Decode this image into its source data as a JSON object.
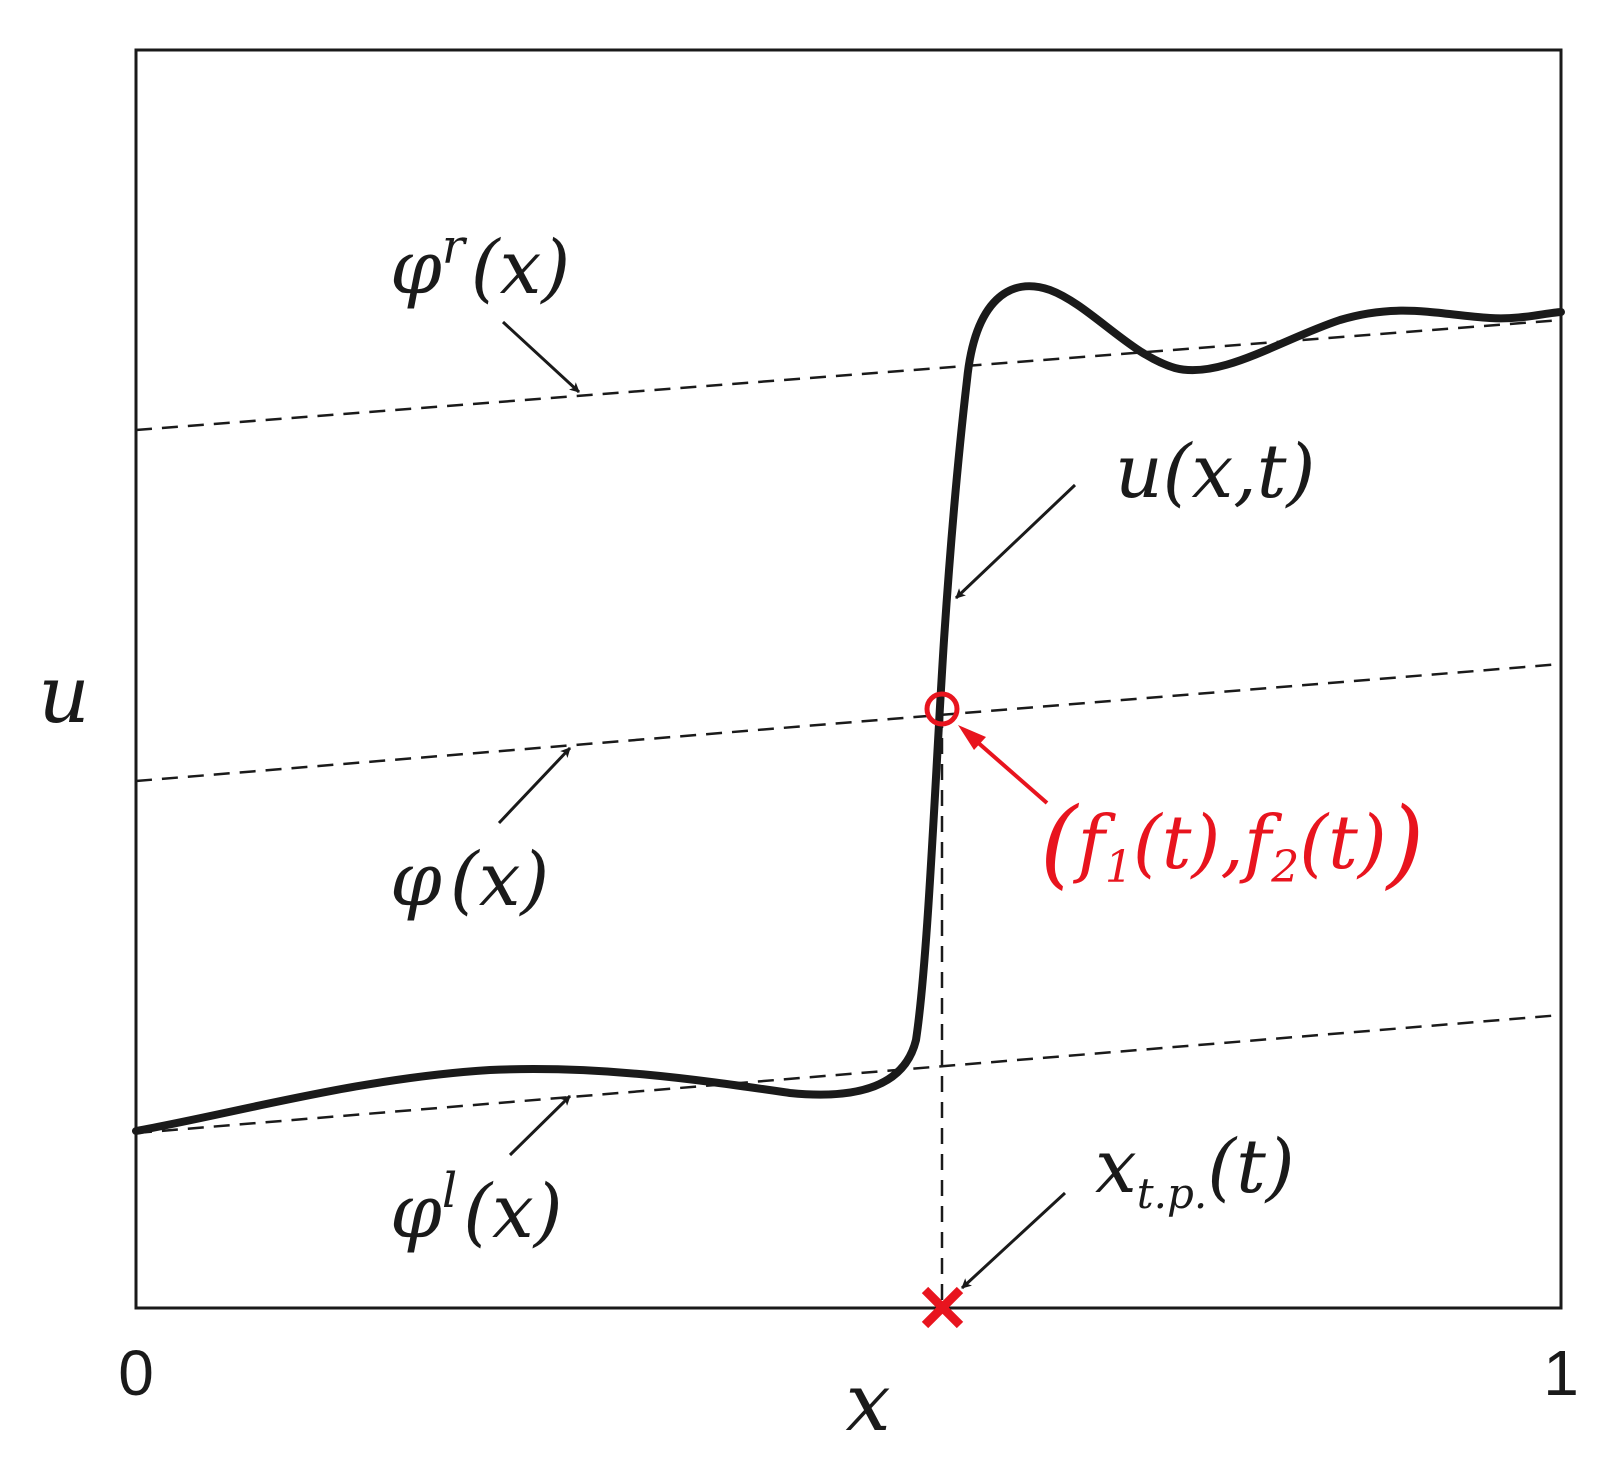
{
  "axes": {
    "xlabel": "x",
    "ylabel": "u",
    "x_ticks": [
      "0",
      "1"
    ]
  },
  "labels": {
    "phi_r": {
      "base": "φ",
      "sup": "r",
      "arg": "(x)"
    },
    "phi": {
      "base": "φ",
      "arg": "(x)"
    },
    "phi_l": {
      "base": "φ",
      "sup": "l",
      "arg": "(x)"
    },
    "u_xt": "u(x,t)",
    "x_tp": {
      "base": "x",
      "sub": "t.p.",
      "arg": "(t)"
    },
    "f_point": {
      "open": "(",
      "f1": "f",
      "s1": "1",
      "a1": "(t),",
      "f2": "f",
      "s2": "2",
      "a2": "(t)",
      "close": ")"
    }
  },
  "colors": {
    "curve": "#1a1a1a",
    "highlight": "#e8141e"
  }
}
